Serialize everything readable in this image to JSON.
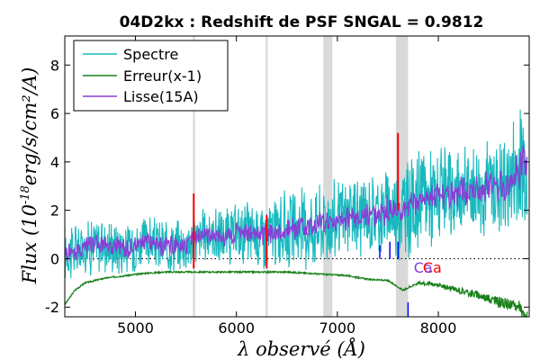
{
  "chart_data": {
    "type": "line",
    "title": "04D2kx : Redshift de PSF SNGAL = 0.9812",
    "xlabel": "λ observé (Å)",
    "ylabel_main": "Flux (10",
    "ylabel_exp": "-18",
    "ylabel_unit": "erg/s/cm²/A)",
    "xlim": [
      4300,
      8900
    ],
    "ylim": [
      -2.4,
      9.2
    ],
    "x_ticks": [
      5000,
      6000,
      7000,
      8000
    ],
    "x_tick_labels": [
      "5000",
      "6000",
      "7000",
      "8000"
    ],
    "y_ticks": [
      -2,
      0,
      2,
      4,
      6,
      8
    ],
    "y_tick_labels": [
      "-2",
      "0",
      "2",
      "4",
      "6",
      "8"
    ],
    "zero_line": 0,
    "legend": {
      "location": "top-left",
      "entries": [
        {
          "label": "Spectre",
          "color": "#17b9be"
        },
        {
          "label": "Erreur(x-1)",
          "color": "#188018"
        },
        {
          "label": "Lisse(15A)",
          "color": "#8a3dd6"
        }
      ]
    },
    "series": [
      {
        "name": "Spectre",
        "color": "#17b9be",
        "x": [
          4300,
          4500,
          4700,
          4900,
          5100,
          5300,
          5500,
          5700,
          5900,
          6100,
          6300,
          6500,
          6700,
          6900,
          7100,
          7300,
          7500,
          7700,
          7900,
          8100,
          8300,
          8500,
          8700,
          8850
        ],
        "y": [
          0.2,
          0.5,
          0.6,
          0.4,
          0.7,
          0.5,
          0.6,
          1.0,
          0.9,
          1.1,
          1.0,
          1.2,
          1.3,
          1.5,
          1.7,
          1.8,
          2.0,
          2.1,
          2.6,
          2.5,
          2.9,
          3.0,
          3.1,
          4.0
        ],
        "noise_amplitude": [
          1.1,
          1.0,
          1.0,
          0.9,
          0.9,
          0.9,
          0.9,
          1.0,
          1.0,
          1.1,
          1.2,
          1.3,
          1.4,
          1.5,
          1.4,
          1.4,
          1.6,
          1.8,
          1.8,
          1.6,
          1.6,
          1.8,
          2.0,
          3.0
        ]
      },
      {
        "name": "Erreur(x-1)",
        "color": "#188018",
        "x": [
          4300,
          4400,
          4500,
          4700,
          4900,
          5100,
          5300,
          5500,
          5700,
          5900,
          6100,
          6300,
          6500,
          6700,
          6900,
          7100,
          7300,
          7500,
          7650,
          7800,
          8000,
          8200,
          8400,
          8600,
          8800,
          8850
        ],
        "y": [
          -1.9,
          -1.3,
          -1.0,
          -0.8,
          -0.7,
          -0.6,
          -0.55,
          -0.55,
          -0.55,
          -0.55,
          -0.55,
          -0.55,
          -0.55,
          -0.6,
          -0.65,
          -0.7,
          -0.85,
          -0.9,
          -1.3,
          -1.0,
          -1.1,
          -1.3,
          -1.5,
          -1.8,
          -2.0,
          -2.4
        ]
      },
      {
        "name": "Lisse(15A)",
        "color": "#8a3dd6",
        "x": [
          4300,
          4500,
          4700,
          4900,
          5100,
          5300,
          5500,
          5700,
          5900,
          6100,
          6300,
          6500,
          6700,
          6900,
          7100,
          7300,
          7500,
          7700,
          7900,
          8100,
          8300,
          8500,
          8700,
          8850
        ],
        "y": [
          0.2,
          0.5,
          0.6,
          0.4,
          0.7,
          0.5,
          0.6,
          1.0,
          0.9,
          1.1,
          1.0,
          1.2,
          1.3,
          1.5,
          1.7,
          1.8,
          2.0,
          2.1,
          2.6,
          2.5,
          2.9,
          3.0,
          3.1,
          4.0
        ],
        "noise_amplitude": [
          0.35,
          0.35,
          0.35,
          0.35,
          0.35,
          0.35,
          0.35,
          0.35,
          0.35,
          0.4,
          0.4,
          0.4,
          0.4,
          0.45,
          0.45,
          0.45,
          0.5,
          0.5,
          0.5,
          0.5,
          0.55,
          0.55,
          0.6,
          0.8
        ]
      }
    ],
    "sky_line_markers": [
      {
        "x": 5577,
        "color": "#ff0000",
        "y_min": -0.4,
        "y_max": 2.7
      },
      {
        "x": 6300,
        "color": "#ff0000",
        "y_min": -0.4,
        "y_max": 1.8
      },
      {
        "x": 7600,
        "color": "#ff0000",
        "y_min": 2.0,
        "y_max": 5.2
      }
    ],
    "grey_bands": [
      {
        "x_min": 5570,
        "x_max": 5590,
        "color": "#d9d9d9"
      },
      {
        "x_min": 6290,
        "x_max": 6310,
        "color": "#d9d9d9"
      },
      {
        "x_min": 6860,
        "x_max": 6950,
        "color": "#d9d9d9"
      },
      {
        "x_min": 7580,
        "x_max": 7700,
        "color": "#d9d9d9"
      }
    ],
    "line_id_ticks": [
      {
        "x": 7420,
        "y_min": 0.0,
        "y_max": 0.55,
        "color": "#0000ff"
      },
      {
        "x": 7520,
        "y_min": 0.0,
        "y_max": 0.7,
        "color": "#0000ff"
      },
      {
        "x": 7600,
        "y_min": 0.0,
        "y_max": 0.7,
        "color": "#0000ff"
      },
      {
        "x": 7700,
        "y_min": -2.4,
        "y_max": -1.8,
        "color": "#0000ff"
      }
    ],
    "annotations": [
      {
        "text": "Ca",
        "x": 7940,
        "y": -0.2,
        "color": "#ff0000"
      },
      {
        "text": "Ca",
        "x": 7850,
        "y": -0.2,
        "color": "#8a3dd6"
      }
    ]
  }
}
